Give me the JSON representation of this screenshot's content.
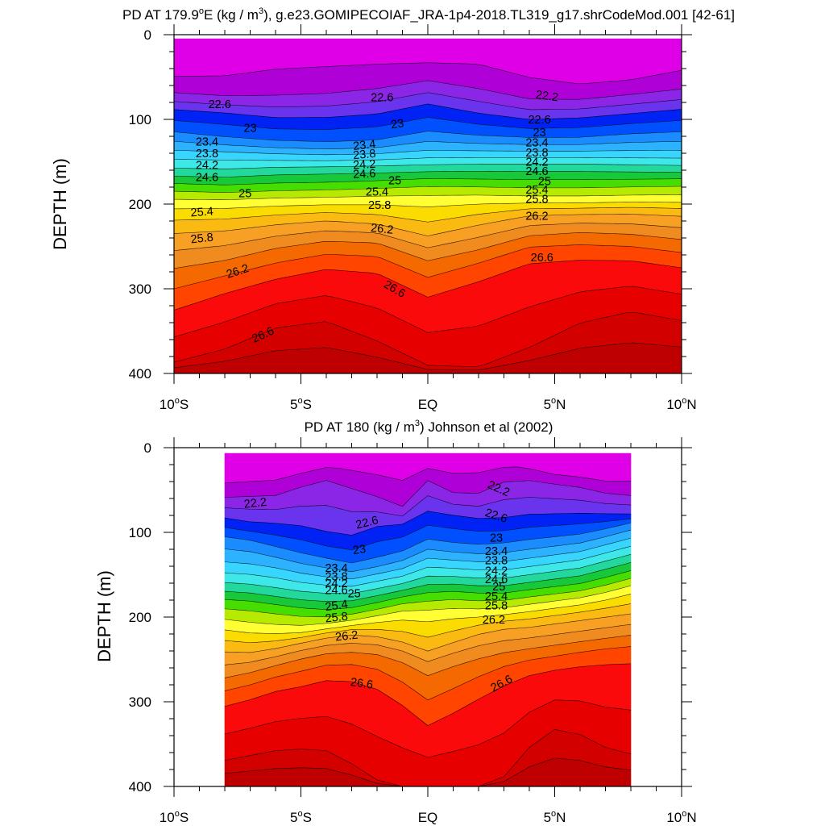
{
  "colors": {
    "bands": [
      "#e000e8",
      "#b000d8",
      "#8b26e6",
      "#6a34ee",
      "#0022f5",
      "#0050ff",
      "#1a8cff",
      "#2cb2ff",
      "#38d6ff",
      "#3fe8e8",
      "#22d89c",
      "#17c83b",
      "#46de00",
      "#b6ea00",
      "#ffff33",
      "#fbdc00",
      "#fbba12",
      "#f8a024",
      "#f08c1f",
      "#f56a00",
      "#ff4500",
      "#fa0a0a",
      "#e60000",
      "#d30000",
      "#bf0000"
    ],
    "background": "#ffffff"
  },
  "chart_data": [
    {
      "type": "contour",
      "title": "PD AT 179.9°E (kg / m³), g.e23.GOMIPECOIAF_JRA-1p4-2018.TL319_g17.shrCodeMod.001 [42-61]",
      "title_parts": {
        "pre": "PD AT 179.9",
        "deg": "o",
        "mid": "E (kg / m",
        "sup": "3",
        "post": "), g.e23.GOMIPECOIAF_JRA-1p4-2018.TL319_g17.shrCodeMod.001 [42-61]"
      },
      "xlabel": "",
      "ylabel": "DEPTH (m)",
      "xlim": [
        -10,
        10
      ],
      "ylim": [
        400,
        0
      ],
      "data_xrange": [
        -10,
        10
      ],
      "y_ticks": [
        0,
        100,
        200,
        300,
        400
      ],
      "y_tick_labels": [
        "0",
        "100",
        "200",
        "300",
        "400"
      ],
      "x_ticks": [
        -10,
        -5,
        0,
        5,
        10
      ],
      "x_tick_labels": [
        {
          "main": "10",
          "deg": "o",
          "dir": "S"
        },
        {
          "main": "5",
          "deg": "o",
          "dir": "S"
        },
        {
          "main": "EQ",
          "deg": "",
          "dir": ""
        },
        {
          "main": "5",
          "deg": "o",
          "dir": "N"
        },
        {
          "main": "10",
          "deg": "o",
          "dir": "N"
        }
      ],
      "contour_interval": 0.2,
      "level_range": [
        21.8,
        26.8
      ],
      "contour_labels": [
        {
          "text": "22.2",
          "lon": 4.7,
          "depth": 72,
          "angle": 8
        },
        {
          "text": "22.6",
          "lon": -8.2,
          "depth": 82,
          "angle": 0
        },
        {
          "text": "22.6",
          "lon": -1.8,
          "depth": 74,
          "angle": 0
        },
        {
          "text": "22.6",
          "lon": 4.4,
          "depth": 100,
          "angle": 0
        },
        {
          "text": "23",
          "lon": -7.0,
          "depth": 110,
          "angle": 0
        },
        {
          "text": "23",
          "lon": -1.2,
          "depth": 105,
          "angle": -8
        },
        {
          "text": "23",
          "lon": 4.4,
          "depth": 115,
          "angle": 0
        },
        {
          "text": "23.4",
          "lon": -8.7,
          "depth": 126,
          "angle": 0
        },
        {
          "text": "23.4",
          "lon": -2.5,
          "depth": 130,
          "angle": -6
        },
        {
          "text": "23.4",
          "lon": 4.3,
          "depth": 127,
          "angle": 0
        },
        {
          "text": "23.8",
          "lon": -8.7,
          "depth": 140,
          "angle": 0
        },
        {
          "text": "23.8",
          "lon": -2.5,
          "depth": 141,
          "angle": -5
        },
        {
          "text": "23.8",
          "lon": 4.3,
          "depth": 139,
          "angle": 0
        },
        {
          "text": "24.2",
          "lon": -8.7,
          "depth": 154,
          "angle": 0
        },
        {
          "text": "24.2",
          "lon": -2.5,
          "depth": 153,
          "angle": -4
        },
        {
          "text": "24.2",
          "lon": 4.3,
          "depth": 150,
          "angle": 0
        },
        {
          "text": "24.6",
          "lon": -8.7,
          "depth": 168,
          "angle": 0
        },
        {
          "text": "24.6",
          "lon": -2.5,
          "depth": 164,
          "angle": -3
        },
        {
          "text": "24.6",
          "lon": 4.3,
          "depth": 161,
          "angle": 0
        },
        {
          "text": "25",
          "lon": -1.3,
          "depth": 172,
          "angle": 0
        },
        {
          "text": "25",
          "lon": 4.6,
          "depth": 173,
          "angle": 0
        },
        {
          "text": "25",
          "lon": -7.2,
          "depth": 187,
          "angle": 0
        },
        {
          "text": "25.4",
          "lon": -2.0,
          "depth": 185,
          "angle": 0
        },
        {
          "text": "25.4",
          "lon": 4.3,
          "depth": 183,
          "angle": 0
        },
        {
          "text": "25.4",
          "lon": -8.9,
          "depth": 209,
          "angle": -4
        },
        {
          "text": "25.8",
          "lon": -1.9,
          "depth": 201,
          "angle": 0
        },
        {
          "text": "25.8",
          "lon": 4.3,
          "depth": 194,
          "angle": 0
        },
        {
          "text": "25.8",
          "lon": -8.9,
          "depth": 240,
          "angle": -6
        },
        {
          "text": "26.2",
          "lon": -1.8,
          "depth": 229,
          "angle": 6
        },
        {
          "text": "26.2",
          "lon": 4.3,
          "depth": 214,
          "angle": 0
        },
        {
          "text": "26.2",
          "lon": -7.5,
          "depth": 279,
          "angle": -18
        },
        {
          "text": "26.6",
          "lon": 4.5,
          "depth": 263,
          "angle": 0
        },
        {
          "text": "26.6",
          "lon": -1.3,
          "depth": 300,
          "angle": 30
        },
        {
          "text": "26.6",
          "lon": -6.5,
          "depth": 354,
          "angle": -24
        }
      ]
    },
    {
      "type": "contour",
      "title": "PD AT 180 (kg / m³) Johnson et al (2002)",
      "title_parts": {
        "pre": "PD AT 180",
        "deg": "",
        "mid": " (kg / m",
        "sup": "3",
        "post": ") Johnson et al (2002)"
      },
      "xlabel": "",
      "ylabel": "DEPTH (m)",
      "xlim": [
        -10,
        10
      ],
      "ylim": [
        400,
        0
      ],
      "data_xrange": [
        -8,
        8
      ],
      "y_ticks": [
        0,
        100,
        200,
        300,
        400
      ],
      "y_tick_labels": [
        "0",
        "100",
        "200",
        "300",
        "400"
      ],
      "x_ticks": [
        -10,
        -5,
        0,
        5,
        10
      ],
      "x_tick_labels": [
        {
          "main": "10",
          "deg": "o",
          "dir": "S"
        },
        {
          "main": "5",
          "deg": "o",
          "dir": "S"
        },
        {
          "main": "EQ",
          "deg": "",
          "dir": ""
        },
        {
          "main": "5",
          "deg": "o",
          "dir": "N"
        },
        {
          "main": "10",
          "deg": "o",
          "dir": "N"
        }
      ],
      "contour_interval": 0.2,
      "level_range": [
        21.8,
        26.8
      ],
      "contour_labels": [
        {
          "text": "22.2",
          "lon": -6.8,
          "depth": 65,
          "angle": -6
        },
        {
          "text": "22.2",
          "lon": 2.8,
          "depth": 48,
          "angle": 24
        },
        {
          "text": "22.6",
          "lon": -2.4,
          "depth": 88,
          "angle": -14
        },
        {
          "text": "22.6",
          "lon": 2.7,
          "depth": 80,
          "angle": 18
        },
        {
          "text": "23",
          "lon": -2.7,
          "depth": 120,
          "angle": -8
        },
        {
          "text": "23",
          "lon": 2.7,
          "depth": 106,
          "angle": 0
        },
        {
          "text": "23.4",
          "lon": -3.6,
          "depth": 142,
          "angle": 0
        },
        {
          "text": "23.4",
          "lon": 2.7,
          "depth": 122,
          "angle": 0
        },
        {
          "text": "23.8",
          "lon": -3.6,
          "depth": 152,
          "angle": 0
        },
        {
          "text": "23.8",
          "lon": 2.7,
          "depth": 133,
          "angle": 0
        },
        {
          "text": "24.2",
          "lon": -3.6,
          "depth": 160,
          "angle": 0
        },
        {
          "text": "24.2",
          "lon": 2.7,
          "depth": 145,
          "angle": 0
        },
        {
          "text": "24.6",
          "lon": -3.6,
          "depth": 168,
          "angle": 0
        },
        {
          "text": "24.6",
          "lon": 2.7,
          "depth": 155,
          "angle": 0
        },
        {
          "text": "25",
          "lon": -2.9,
          "depth": 172,
          "angle": 0
        },
        {
          "text": "25",
          "lon": 2.8,
          "depth": 164,
          "angle": 0
        },
        {
          "text": "25.4",
          "lon": -3.6,
          "depth": 186,
          "angle": -8
        },
        {
          "text": "25.4",
          "lon": 2.7,
          "depth": 175,
          "angle": 0
        },
        {
          "text": "25.8",
          "lon": -3.6,
          "depth": 200,
          "angle": -6
        },
        {
          "text": "25.8",
          "lon": 2.7,
          "depth": 186,
          "angle": 0
        },
        {
          "text": "26.2",
          "lon": -3.2,
          "depth": 222,
          "angle": -6
        },
        {
          "text": "26.2",
          "lon": 2.6,
          "depth": 203,
          "angle": 0
        },
        {
          "text": "26.6",
          "lon": -2.6,
          "depth": 278,
          "angle": 8
        },
        {
          "text": "26.6",
          "lon": 2.9,
          "depth": 278,
          "angle": -28
        }
      ]
    }
  ]
}
